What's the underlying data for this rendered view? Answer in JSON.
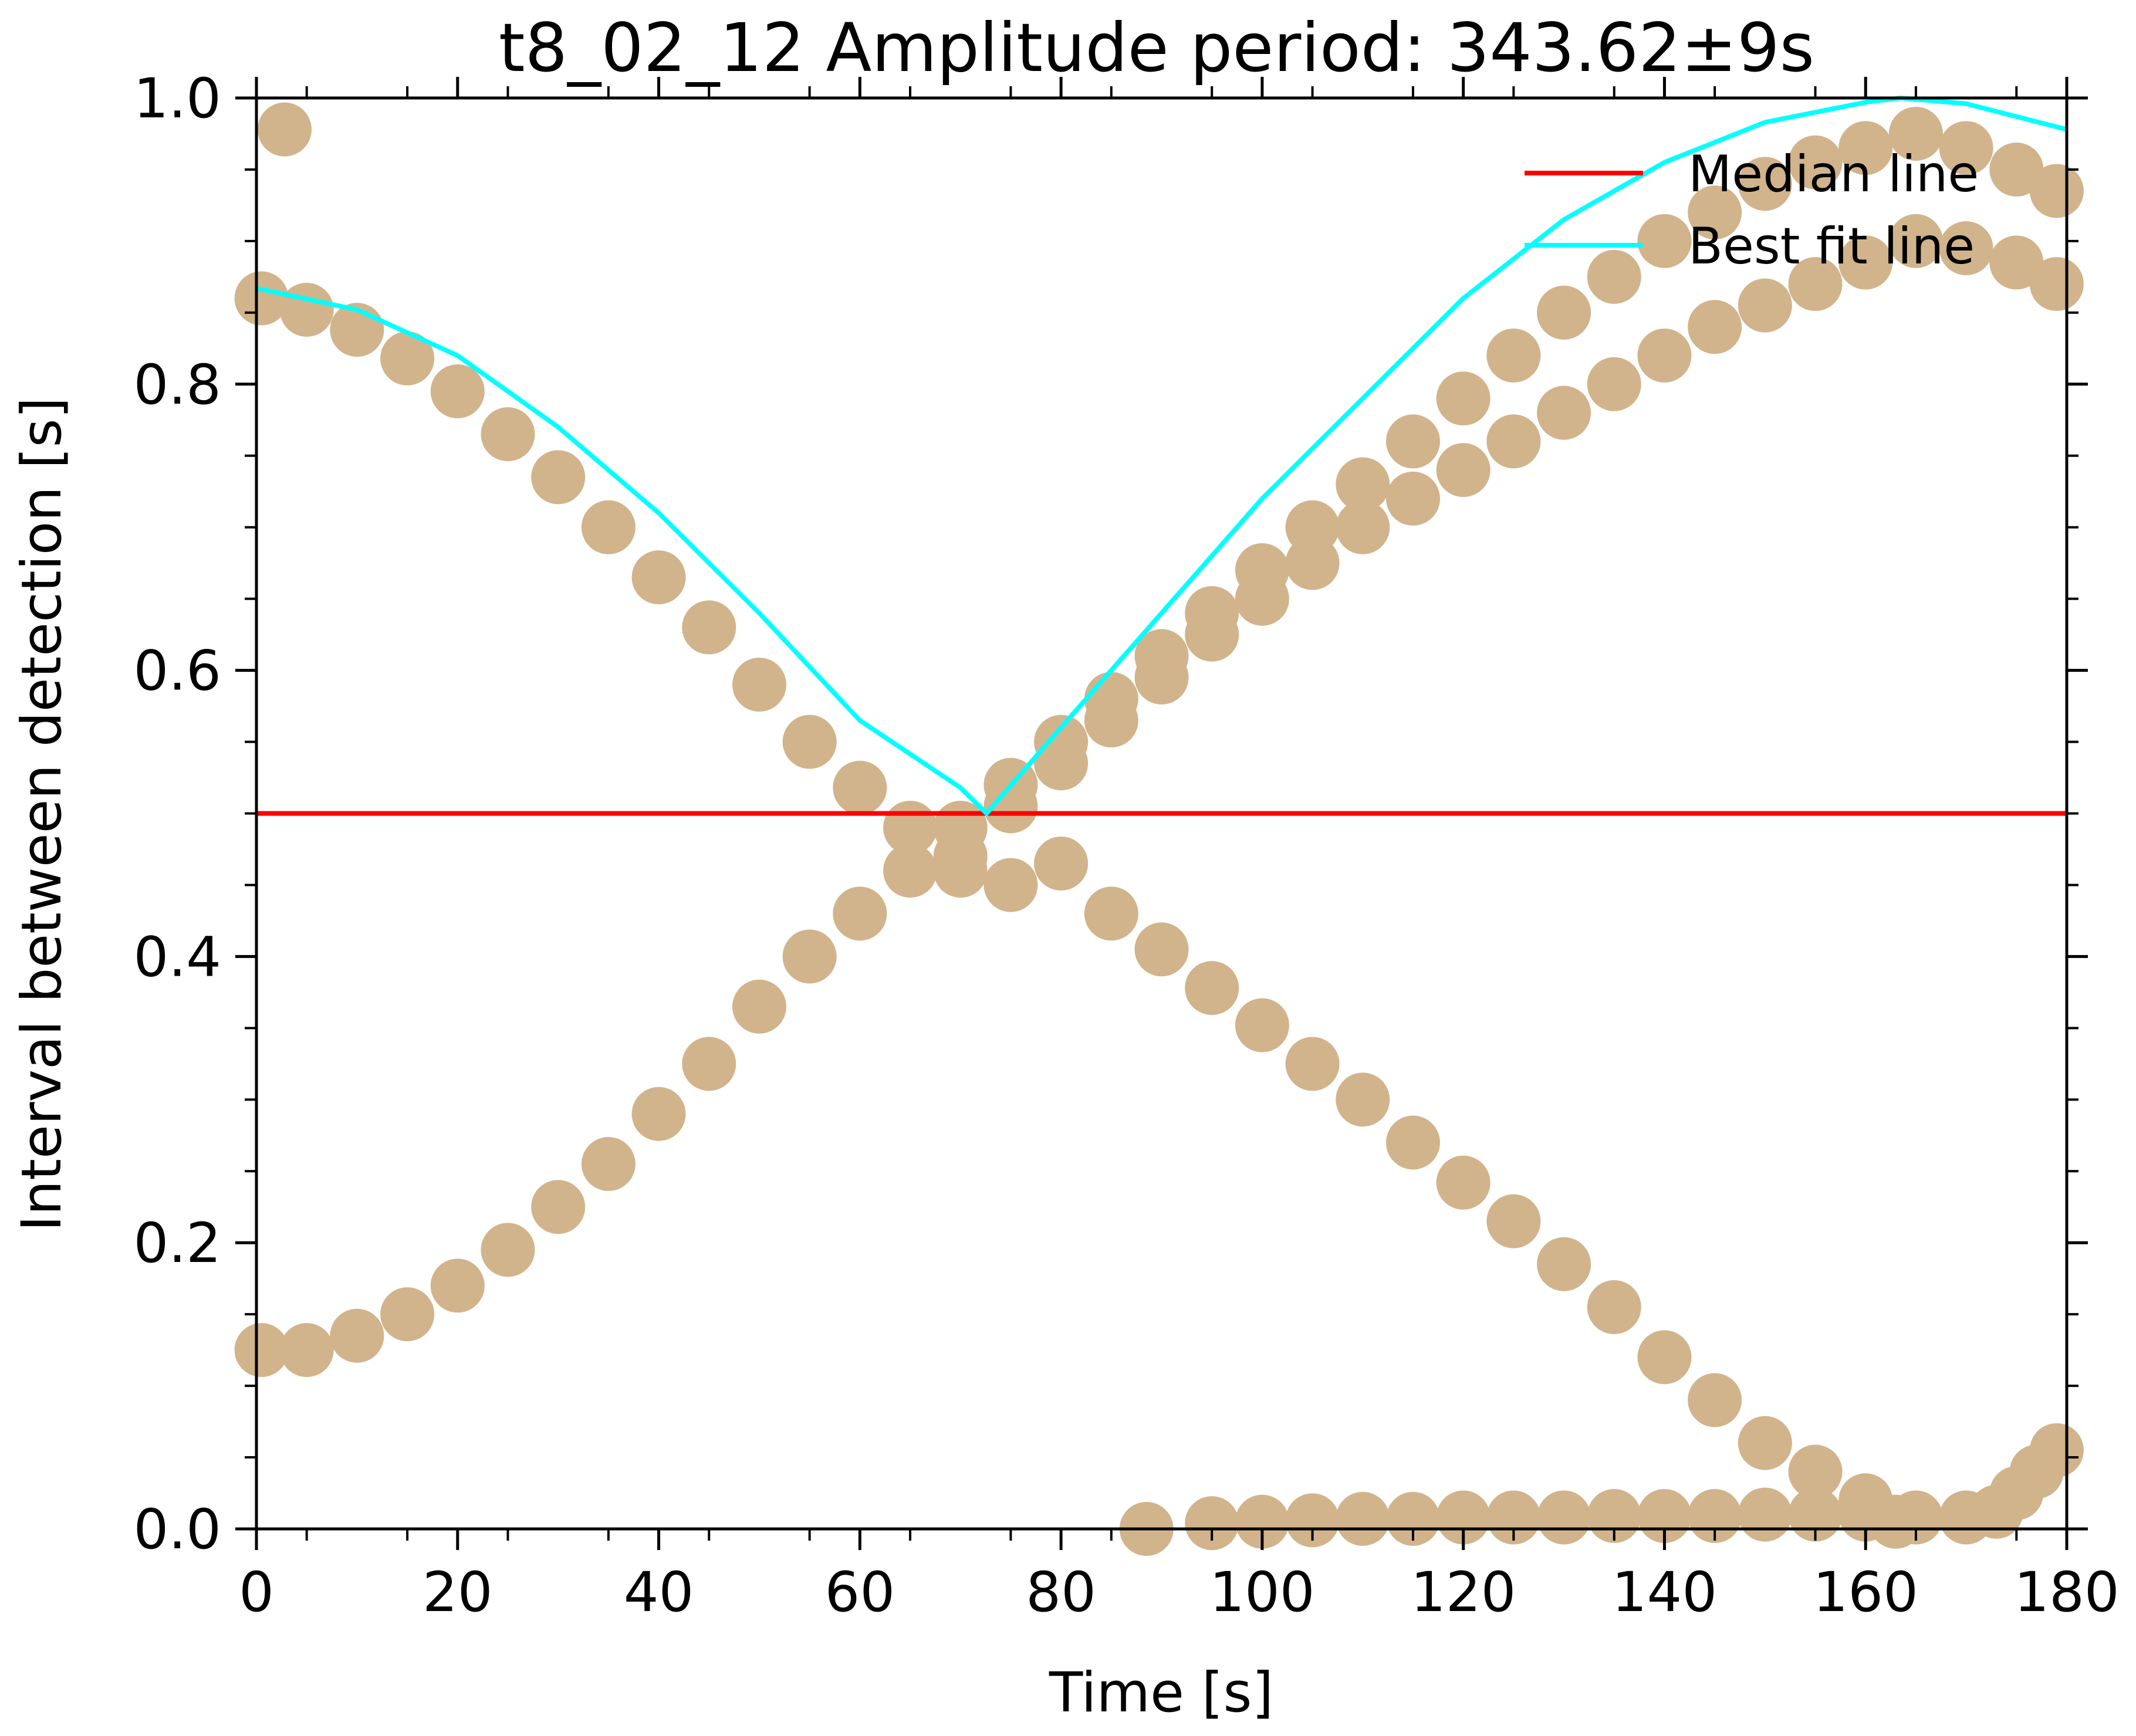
{
  "chart_data": {
    "type": "scatter",
    "title": "t8_02_12 Amplitude period: 343.62±9s",
    "xlabel": "Time [s]",
    "ylabel": "Interval between detection [s]",
    "xlim": [
      0,
      180
    ],
    "ylim": [
      0,
      1.0
    ],
    "xticks": [
      "0",
      "20",
      "40",
      "60",
      "80",
      "100",
      "120",
      "140",
      "160",
      "180"
    ],
    "yticks": [
      "0.0",
      "0.2",
      "0.4",
      "0.6",
      "0.8",
      "1.0"
    ],
    "grid": false,
    "legend_position": "top-right",
    "legend": [
      "Median line",
      "Best fit line"
    ],
    "colors": {
      "points": "#d2b48c",
      "median": "#ff0000",
      "fit": "#00ffff"
    },
    "series": [
      {
        "kind": "scatter",
        "points": [
          [
            2.8,
            0.978
          ],
          [
            0.5,
            0.86
          ],
          [
            5,
            0.852
          ],
          [
            10,
            0.838
          ],
          [
            15,
            0.818
          ],
          [
            20,
            0.795
          ],
          [
            25,
            0.765
          ],
          [
            30,
            0.735
          ],
          [
            35,
            0.7
          ],
          [
            40,
            0.665
          ],
          [
            45,
            0.63
          ],
          [
            50,
            0.59
          ],
          [
            55,
            0.55
          ],
          [
            60,
            0.518
          ],
          [
            65,
            0.49
          ],
          [
            70,
            0.46
          ],
          [
            75,
            0.45
          ],
          [
            80,
            0.465
          ],
          [
            85,
            0.43
          ],
          [
            90,
            0.405
          ],
          [
            95,
            0.378
          ],
          [
            100,
            0.352
          ],
          [
            105,
            0.325
          ],
          [
            110,
            0.3
          ],
          [
            115,
            0.27
          ],
          [
            120,
            0.242
          ],
          [
            125,
            0.215
          ],
          [
            130,
            0.185
          ],
          [
            135,
            0.155
          ],
          [
            140,
            0.12
          ],
          [
            145,
            0.09
          ],
          [
            150,
            0.06
          ],
          [
            155,
            0.04
          ],
          [
            160,
            0.02
          ],
          [
            163,
            0.005
          ],
          [
            0.5,
            0.125
          ],
          [
            5,
            0.125
          ],
          [
            10,
            0.135
          ],
          [
            15,
            0.15
          ],
          [
            20,
            0.17
          ],
          [
            25,
            0.195
          ],
          [
            30,
            0.225
          ],
          [
            35,
            0.255
          ],
          [
            40,
            0.29
          ],
          [
            45,
            0.325
          ],
          [
            50,
            0.365
          ],
          [
            55,
            0.4
          ],
          [
            60,
            0.43
          ],
          [
            65,
            0.46
          ],
          [
            70,
            0.49
          ],
          [
            75,
            0.52
          ],
          [
            80,
            0.55
          ],
          [
            85,
            0.58
          ],
          [
            90,
            0.61
          ],
          [
            95,
            0.64
          ],
          [
            100,
            0.67
          ],
          [
            105,
            0.7
          ],
          [
            110,
            0.73
          ],
          [
            115,
            0.76
          ],
          [
            120,
            0.79
          ],
          [
            125,
            0.82
          ],
          [
            130,
            0.85
          ],
          [
            135,
            0.875
          ],
          [
            140,
            0.9
          ],
          [
            145,
            0.92
          ],
          [
            150,
            0.94
          ],
          [
            155,
            0.955
          ],
          [
            160,
            0.965
          ],
          [
            165,
            0.975
          ],
          [
            170,
            0.965
          ],
          [
            175,
            0.95
          ],
          [
            179,
            0.935
          ],
          [
            70,
            0.47
          ],
          [
            75,
            0.505
          ],
          [
            80,
            0.535
          ],
          [
            85,
            0.565
          ],
          [
            90,
            0.595
          ],
          [
            95,
            0.625
          ],
          [
            100,
            0.65
          ],
          [
            105,
            0.675
          ],
          [
            110,
            0.7
          ],
          [
            115,
            0.72
          ],
          [
            120,
            0.74
          ],
          [
            125,
            0.76
          ],
          [
            130,
            0.78
          ],
          [
            135,
            0.8
          ],
          [
            140,
            0.82
          ],
          [
            145,
            0.84
          ],
          [
            150,
            0.855
          ],
          [
            155,
            0.87
          ],
          [
            160,
            0.885
          ],
          [
            165,
            0.9
          ],
          [
            170,
            0.895
          ],
          [
            175,
            0.885
          ],
          [
            179,
            0.87
          ],
          [
            88.5,
            0.0
          ],
          [
            95,
            0.004
          ],
          [
            100,
            0.005
          ],
          [
            105,
            0.006
          ],
          [
            110,
            0.007
          ],
          [
            115,
            0.007
          ],
          [
            120,
            0.008
          ],
          [
            125,
            0.008
          ],
          [
            130,
            0.008
          ],
          [
            135,
            0.009
          ],
          [
            140,
            0.009
          ],
          [
            145,
            0.009
          ],
          [
            150,
            0.01
          ],
          [
            155,
            0.01
          ],
          [
            160,
            0.01
          ],
          [
            165,
            0.008
          ],
          [
            170,
            0.008
          ],
          [
            173,
            0.012
          ],
          [
            175,
            0.025
          ],
          [
            177,
            0.04
          ],
          [
            179,
            0.055
          ]
        ]
      },
      {
        "name": "Median line",
        "kind": "line",
        "x": [
          0,
          180
        ],
        "y": [
          0.5,
          0.5
        ]
      },
      {
        "name": "Best fit line",
        "kind": "line",
        "x": [
          0,
          10,
          20,
          30,
          40,
          50,
          60,
          70,
          72.6,
          80,
          90,
          100,
          110,
          120,
          130,
          140,
          150,
          160,
          163.5,
          170,
          180
        ],
        "y": [
          0.867,
          0.852,
          0.82,
          0.77,
          0.71,
          0.64,
          0.565,
          0.518,
          0.5,
          0.56,
          0.64,
          0.72,
          0.79,
          0.86,
          0.915,
          0.955,
          0.983,
          0.997,
          1.0,
          0.996,
          0.978
        ]
      }
    ]
  }
}
